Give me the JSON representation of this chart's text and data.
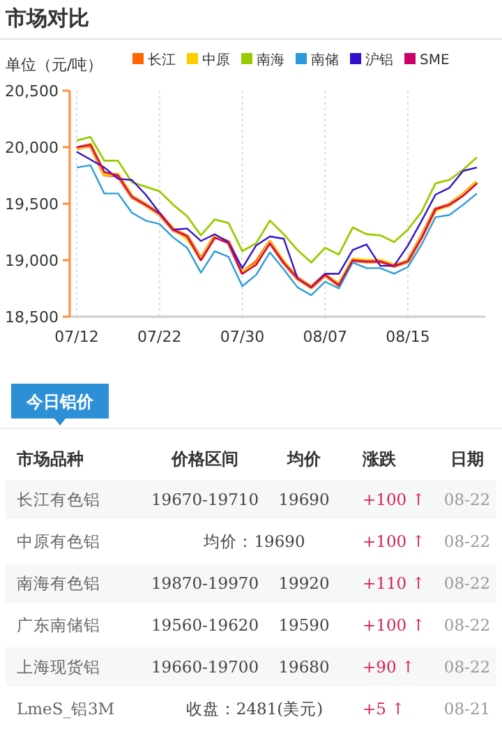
{
  "chart_data": [
    {
      "type": "line",
      "title": "市场对比",
      "ylabel": "单位（元/吨）",
      "categories": [
        "07/12",
        null,
        null,
        null,
        null,
        null,
        "07/22",
        null,
        null,
        null,
        null,
        null,
        "07/30",
        null,
        null,
        null,
        null,
        null,
        "08/07",
        null,
        null,
        null,
        null,
        null,
        "08/15",
        null,
        null,
        null,
        null,
        null
      ],
      "series": [
        {
          "name": "长江",
          "color": "#ff6600",
          "values": [
            19990,
            20020,
            19760,
            19750,
            19560,
            19490,
            19410,
            19270,
            19210,
            19010,
            19210,
            19160,
            18890,
            18980,
            19160,
            18980,
            18840,
            18760,
            18870,
            18780,
            19000,
            18990,
            18990,
            18950,
            18990,
            19210,
            19450,
            19490,
            19580,
            19690
          ]
        },
        {
          "name": "中原",
          "color": "#ffcc00",
          "values": [
            19990,
            20020,
            19760,
            19760,
            19560,
            19490,
            19410,
            19280,
            19190,
            19010,
            19210,
            19160,
            18900,
            18960,
            19160,
            18990,
            18840,
            18760,
            18870,
            18790,
            19010,
            19000,
            19000,
            18960,
            18990,
            19210,
            19440,
            19490,
            19580,
            19690
          ]
        },
        {
          "name": "南海",
          "color": "#99cc00",
          "values": [
            20060,
            20090,
            19880,
            19880,
            19690,
            19650,
            19610,
            19490,
            19390,
            19220,
            19360,
            19330,
            19080,
            19150,
            19350,
            19230,
            19090,
            18980,
            19110,
            19050,
            19290,
            19230,
            19220,
            19160,
            19270,
            19430,
            19680,
            19710,
            19800,
            19910
          ]
        },
        {
          "name": "南储",
          "color": "#2b9bdc",
          "values": [
            19820,
            19840,
            19590,
            19590,
            19420,
            19350,
            19320,
            19200,
            19110,
            18890,
            19080,
            19030,
            18770,
            18870,
            19070,
            18920,
            18760,
            18690,
            18810,
            18750,
            18980,
            18930,
            18930,
            18880,
            18940,
            19140,
            19380,
            19400,
            19490,
            19590
          ]
        },
        {
          "name": "沪铝",
          "color": "#3311cc",
          "values": [
            19960,
            19890,
            19820,
            19720,
            19710,
            19580,
            19420,
            19270,
            19280,
            19170,
            19230,
            19160,
            18930,
            19130,
            19210,
            19190,
            18840,
            18760,
            18880,
            18880,
            19090,
            19140,
            18950,
            18950,
            19130,
            19350,
            19580,
            19640,
            19790,
            19820
          ]
        },
        {
          "name": "SME",
          "color": "#cc0066",
          "values": [
            20000,
            20020,
            19780,
            19750,
            19560,
            19490,
            19410,
            19270,
            19210,
            19000,
            19200,
            19150,
            18880,
            18960,
            19150,
            18980,
            18840,
            18760,
            18870,
            18780,
            19000,
            18990,
            18990,
            18950,
            18990,
            19200,
            19450,
            19490,
            19570,
            19680
          ]
        }
      ],
      "ylim": [
        18500,
        20500
      ],
      "yticks": [
        {
          "value": 18500,
          "label": "18,500"
        },
        {
          "value": 19000,
          "label": "19,000"
        },
        {
          "value": 19500,
          "label": "19,500"
        },
        {
          "value": 20000,
          "label": "20,000"
        },
        {
          "value": 20500,
          "label": "20,500"
        }
      ],
      "grid": "x",
      "legend": "top",
      "marker": "none",
      "line_style": "solid"
    },
    {
      "type": "other",
      "title": "今日铝价",
      "categories": [
        "市场品种",
        "价格区间",
        "均价",
        "涨跌",
        "日期"
      ],
      "cell_labels": [
        [
          "长江有色铝",
          "19670-19710",
          "19690",
          "+100 ↑",
          "08-22"
        ],
        [
          "中原有色铝",
          "均价：19690",
          null,
          "+100 ↑",
          "08-22"
        ],
        [
          "南海有色铝",
          "19870-19970",
          "19920",
          "+110 ↑",
          "08-22"
        ],
        [
          "广东南储铝",
          "19560-19620",
          "19590",
          "+100 ↑",
          "08-22"
        ],
        [
          "上海现货铝",
          "19660-19700",
          "19680",
          "+90 ↑",
          "08-22"
        ],
        [
          "LmeS_铝3M",
          "收盘：2481(美元)",
          null,
          "+5 ↑",
          "08-21"
        ]
      ]
    }
  ]
}
